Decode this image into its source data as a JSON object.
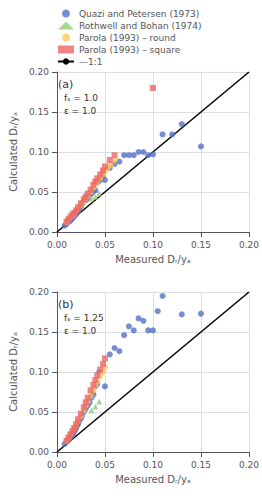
{
  "chart_data": [
    {
      "type": "scatter",
      "xlabel": "Measured Dᵣ/yₐ",
      "ylabel": "Calculated Dᵣ/yₐ",
      "annotations": [
        "(a)",
        "fₛ = 1.0\nε = 1.0"
      ],
      "xlim": [
        0.0,
        0.2
      ],
      "ylim": [
        0.0,
        0.2
      ],
      "xticks": [
        {
          "value": 0.0,
          "label": "0.00"
        },
        {
          "value": 0.05,
          "label": "0.05"
        },
        {
          "value": 0.1,
          "label": "0.10"
        },
        {
          "value": 0.15,
          "label": "0.15"
        },
        {
          "value": 0.2,
          "label": "0.20"
        }
      ],
      "yticks": [
        {
          "value": 0.0,
          "label": "0.00"
        },
        {
          "value": 0.05,
          "label": "0.05"
        },
        {
          "value": 0.1,
          "label": "0.10"
        },
        {
          "value": 0.15,
          "label": "0.15"
        },
        {
          "value": 0.2,
          "label": "0.20"
        }
      ],
      "grid": true,
      "legend": "top",
      "series": [
        {
          "name": "Quazi and Petersen (1973)",
          "type": "scatter",
          "marker": "circle",
          "x": [
            0.008,
            0.01,
            0.011,
            0.012,
            0.013,
            0.014,
            0.015,
            0.016,
            0.017,
            0.018,
            0.019,
            0.02,
            0.021,
            0.022,
            0.023,
            0.025,
            0.026,
            0.028,
            0.03,
            0.032,
            0.034,
            0.036,
            0.038,
            0.04,
            0.042,
            0.044,
            0.046,
            0.048,
            0.05,
            0.055,
            0.06,
            0.065,
            0.07,
            0.075,
            0.08,
            0.085,
            0.09,
            0.095,
            0.1,
            0.11,
            0.12,
            0.13,
            0.15
          ],
          "values": [
            0.008,
            0.01,
            0.012,
            0.013,
            0.015,
            0.014,
            0.016,
            0.018,
            0.018,
            0.02,
            0.022,
            0.022,
            0.025,
            0.026,
            0.028,
            0.032,
            0.035,
            0.038,
            0.04,
            0.042,
            0.046,
            0.048,
            0.051,
            0.052,
            0.062,
            0.064,
            0.066,
            0.07,
            0.065,
            0.08,
            0.085,
            0.088,
            0.096,
            0.096,
            0.096,
            0.1,
            0.1,
            0.096,
            0.097,
            0.122,
            0.122,
            0.135,
            0.107
          ]
        },
        {
          "name": "Rothwell and Bohan (1974)",
          "type": "scatter",
          "marker": "triangle",
          "x": [
            0.036,
            0.04,
            0.044
          ],
          "values": [
            0.042,
            0.044,
            0.048
          ]
        },
        {
          "name": "Parola (1993) – round",
          "type": "scatter",
          "marker": "circle",
          "x": [
            0.01,
            0.012,
            0.014,
            0.016,
            0.018,
            0.02,
            0.022,
            0.025,
            0.028,
            0.03,
            0.032,
            0.035,
            0.038,
            0.04,
            0.042,
            0.045,
            0.048,
            0.05,
            0.053,
            0.056,
            0.06
          ],
          "values": [
            0.012,
            0.015,
            0.018,
            0.02,
            0.022,
            0.026,
            0.03,
            0.034,
            0.038,
            0.042,
            0.045,
            0.05,
            0.055,
            0.06,
            0.063,
            0.067,
            0.072,
            0.076,
            0.08,
            0.084,
            0.09
          ]
        },
        {
          "name": "Parola (1993) – square",
          "type": "scatter",
          "marker": "square",
          "x": [
            0.01,
            0.012,
            0.014,
            0.016,
            0.018,
            0.02,
            0.022,
            0.025,
            0.028,
            0.03,
            0.032,
            0.035,
            0.038,
            0.04,
            0.042,
            0.045,
            0.048,
            0.05,
            0.055,
            0.06,
            0.1
          ],
          "values": [
            0.013,
            0.016,
            0.019,
            0.022,
            0.024,
            0.027,
            0.031,
            0.036,
            0.041,
            0.044,
            0.048,
            0.053,
            0.059,
            0.063,
            0.067,
            0.072,
            0.077,
            0.082,
            0.09,
            0.096,
            0.18
          ]
        },
        {
          "name": "—1:1",
          "type": "line",
          "line_style": "solid",
          "color": "#000000",
          "x": [
            0,
            0.2
          ],
          "values": [
            0,
            0.2
          ]
        }
      ]
    },
    {
      "type": "scatter",
      "xlabel": "Measured Dᵣ/yₐ",
      "ylabel": "Calculated Dᵣ/yₐ",
      "annotations": [
        "(b)",
        "fₛ = 1.25\nε = 1.0"
      ],
      "xlim": [
        0.0,
        0.2
      ],
      "ylim": [
        0.0,
        0.2
      ],
      "xticks": [
        {
          "value": 0.0,
          "label": "0.00"
        },
        {
          "value": 0.05,
          "label": "0.05"
        },
        {
          "value": 0.1,
          "label": "0.10"
        },
        {
          "value": 0.15,
          "label": "0.15"
        },
        {
          "value": 0.2,
          "label": "0.20"
        }
      ],
      "yticks": [
        {
          "value": 0.0,
          "label": "0.00"
        },
        {
          "value": 0.05,
          "label": "0.05"
        },
        {
          "value": 0.1,
          "label": "0.10"
        },
        {
          "value": 0.15,
          "label": "0.15"
        },
        {
          "value": 0.2,
          "label": "0.20"
        }
      ],
      "grid": true,
      "series": [
        {
          "name": "Quazi and Petersen (1973)",
          "type": "scatter",
          "marker": "circle",
          "x": [
            0.008,
            0.01,
            0.011,
            0.012,
            0.013,
            0.014,
            0.015,
            0.016,
            0.017,
            0.018,
            0.019,
            0.02,
            0.021,
            0.022,
            0.023,
            0.025,
            0.026,
            0.028,
            0.03,
            0.032,
            0.034,
            0.036,
            0.038,
            0.04,
            0.042,
            0.044,
            0.05,
            0.055,
            0.06,
            0.065,
            0.07,
            0.075,
            0.08,
            0.085,
            0.09,
            0.095,
            0.1,
            0.105,
            0.11,
            0.13,
            0.15
          ],
          "values": [
            0.01,
            0.013,
            0.014,
            0.015,
            0.018,
            0.018,
            0.02,
            0.022,
            0.023,
            0.026,
            0.028,
            0.03,
            0.033,
            0.035,
            0.038,
            0.042,
            0.045,
            0.05,
            0.054,
            0.058,
            0.062,
            0.068,
            0.072,
            0.082,
            0.085,
            0.1,
            0.082,
            0.122,
            0.13,
            0.126,
            0.146,
            0.157,
            0.152,
            0.167,
            0.164,
            0.152,
            0.152,
            0.176,
            0.195,
            0.172,
            0.173
          ]
        },
        {
          "name": "Rothwell and Bohan (1974)",
          "type": "scatter",
          "marker": "triangle",
          "x": [
            0.036,
            0.04,
            0.044
          ],
          "values": [
            0.052,
            0.057,
            0.063
          ]
        },
        {
          "name": "Parola (1993) – round",
          "type": "scatter",
          "marker": "circle",
          "x": [
            0.01,
            0.012,
            0.014,
            0.016,
            0.018,
            0.02,
            0.022,
            0.025,
            0.028,
            0.03,
            0.032,
            0.035,
            0.038,
            0.04,
            0.042,
            0.045,
            0.048,
            0.05
          ],
          "values": [
            0.014,
            0.017,
            0.021,
            0.025,
            0.029,
            0.034,
            0.039,
            0.045,
            0.052,
            0.058,
            0.063,
            0.07,
            0.077,
            0.083,
            0.088,
            0.095,
            0.1,
            0.106
          ]
        },
        {
          "name": "Parola (1993) – square",
          "type": "scatter",
          "marker": "square",
          "x": [
            0.01,
            0.012,
            0.014,
            0.016,
            0.018,
            0.02,
            0.022,
            0.025,
            0.028,
            0.03,
            0.032,
            0.035,
            0.038,
            0.04,
            0.042,
            0.045,
            0.048,
            0.05
          ],
          "values": [
            0.014,
            0.018,
            0.022,
            0.026,
            0.03,
            0.035,
            0.041,
            0.048,
            0.056,
            0.062,
            0.068,
            0.077,
            0.084,
            0.09,
            0.096,
            0.103,
            0.11,
            0.117
          ]
        },
        {
          "name": "—1:1",
          "type": "line",
          "line_style": "solid",
          "color": "#000000",
          "x": [
            0,
            0.2
          ],
          "values": [
            0,
            0.2
          ]
        }
      ]
    }
  ]
}
